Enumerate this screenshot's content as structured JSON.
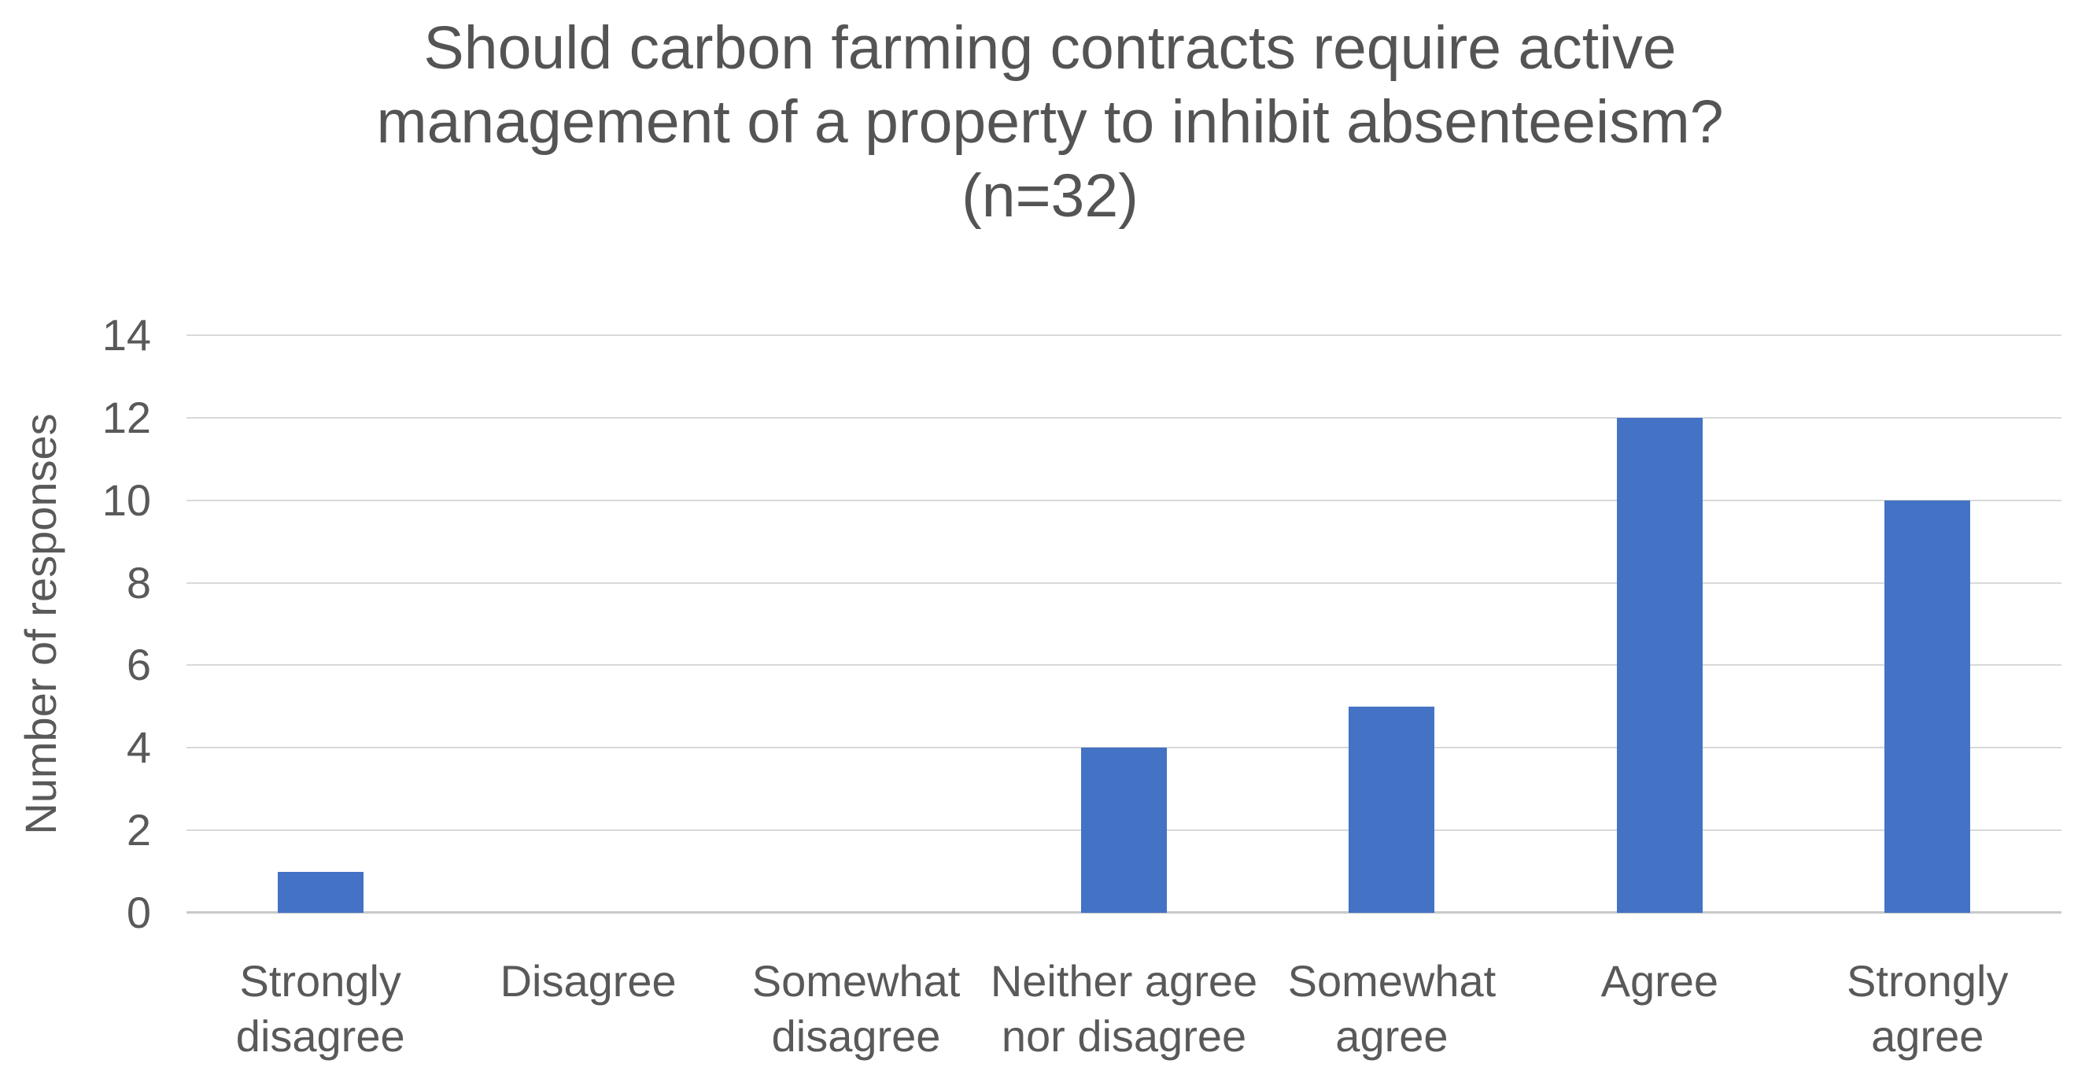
{
  "chart": {
    "title_lines": [
      "Should carbon farming contracts require active",
      "management of a property to inhibit absenteeism?",
      "(n=32)"
    ],
    "y_axis_label": "Number of responses"
  },
  "chart_data": {
    "type": "bar",
    "title": "Should carbon farming contracts require active management of a property to inhibit absenteeism? (n=32)",
    "sample_size": 32,
    "xlabel": "",
    "ylabel": "Number of responses",
    "categories": [
      "Strongly disagree",
      "Disagree",
      "Somewhat disagree",
      "Neither agree nor disagree",
      "Somewhat agree",
      "Agree",
      "Strongly agree"
    ],
    "category_label_lines": [
      [
        "Strongly",
        "disagree"
      ],
      [
        "Disagree"
      ],
      [
        "Somewhat",
        "disagree"
      ],
      [
        "Neither agree",
        "nor disagree"
      ],
      [
        "Somewhat",
        "agree"
      ],
      [
        "Agree"
      ],
      [
        "Strongly",
        "agree"
      ]
    ],
    "values": [
      1,
      0,
      0,
      4,
      5,
      12,
      10
    ],
    "ylim": [
      0,
      14
    ],
    "yticks": [
      0,
      2,
      4,
      6,
      8,
      10,
      12,
      14
    ],
    "grid": true,
    "legend": "none",
    "colors": {
      "bar": "#4472c4",
      "gridline": "#d9d9d9",
      "axis_line": "#c9c9c9",
      "text": "#595959",
      "title_text": "#545454",
      "background": "#ffffff"
    }
  }
}
